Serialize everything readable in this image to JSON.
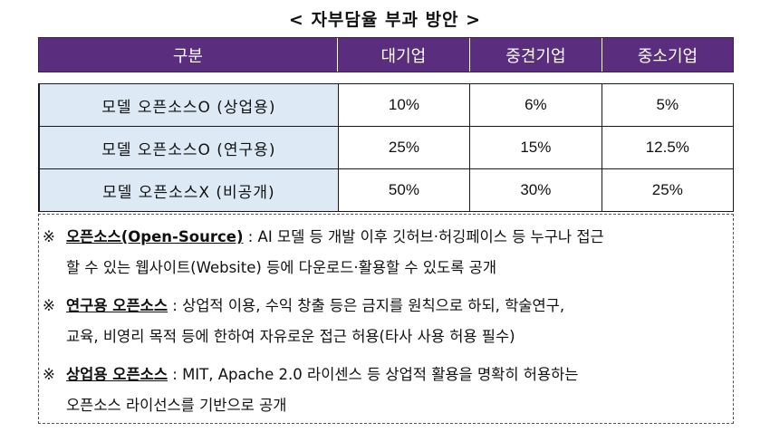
{
  "title": "< 자부담율 부과 방안 >",
  "header": [
    "구분",
    "대기업",
    "중견기업",
    "중소기업"
  ],
  "rows": [
    {
      "name": "모델 오픈소스O (상업용)",
      "large": "10%",
      "mid": "6%",
      "small": "5%"
    },
    {
      "name": "모델 오픈소스O (연구용)",
      "large": "25%",
      "mid": "15%",
      "small": "12.5%"
    },
    {
      "name": "모델 오픈소스X (비공개)",
      "large": "50%",
      "mid": "30%",
      "small": "25%"
    }
  ],
  "notes": [
    {
      "mark": "※",
      "term": "오픈소스(Open-Source)",
      "line1": " : AI 모델 등 개발 이후 깃허브·허깅페이스 등 누구나 접근",
      "line2": "할 수 있는 웹사이트(Website) 등에 다운로드·활용할 수 있도록 공개"
    },
    {
      "mark": "※",
      "term": "연구용 오픈소스",
      "line1": " : 상업적 이용, 수익 창출 등은 금지를 원칙으로 하되, 학술연구,",
      "line2": "교육, 비영리 목적 등에 한하여 자유로운 접근 허용(타사 사용 허용 필수)"
    },
    {
      "mark": "※",
      "term": "상업용 오픈소스",
      "line1": " : MIT, Apache 2.0 라이센스 등 상업적 활용을 명확히 허용하는",
      "line2": "오픈소스 라이선스를 기반으로 공개"
    }
  ]
}
